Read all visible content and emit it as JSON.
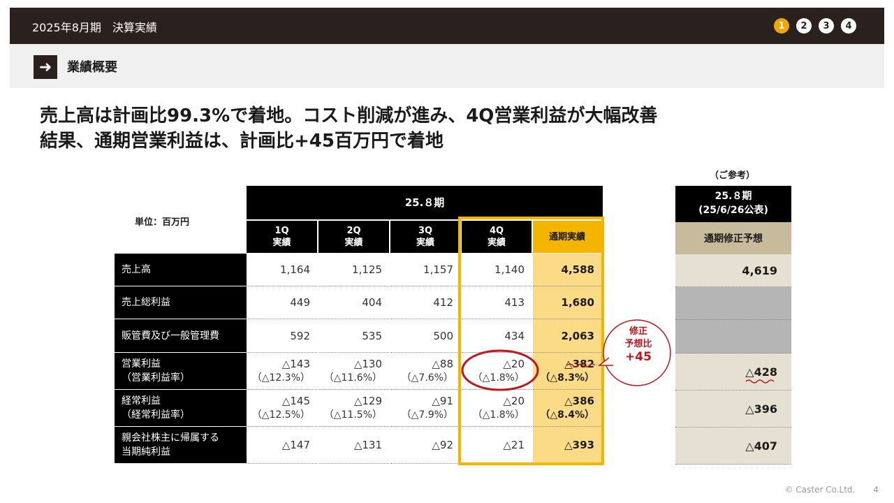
{
  "header": {
    "title": "2025年8月期　決算実績",
    "steps": [
      "1",
      "2",
      "3",
      "4"
    ],
    "active_step": "1"
  },
  "section": {
    "title": "業績概要"
  },
  "headline": {
    "line1": "売上高は計画比99.3%で着地。コスト削減が進み、4Q営業利益が大幅改善",
    "line2": "結果、通期営業利益は、計画比+45百万円で着地"
  },
  "table": {
    "unit": "単位：百万円",
    "period": "25.８期",
    "columns": [
      {
        "line1": "1Q",
        "line2": "実績"
      },
      {
        "line1": "2Q",
        "line2": "実績"
      },
      {
        "line1": "3Q",
        "line2": "実績"
      },
      {
        "line1": "4Q",
        "line2": "実績"
      },
      {
        "line1": "通期実績",
        "line2": ""
      }
    ],
    "rows": [
      {
        "label1": "売上高",
        "label2": "",
        "values": [
          [
            "1,164",
            ""
          ],
          [
            "1,125",
            ""
          ],
          [
            "1,157",
            ""
          ],
          [
            "1,140",
            ""
          ],
          [
            "4,588",
            ""
          ]
        ]
      },
      {
        "label1": "売上総利益",
        "label2": "",
        "values": [
          [
            "449",
            ""
          ],
          [
            "404",
            ""
          ],
          [
            "412",
            ""
          ],
          [
            "413",
            ""
          ],
          [
            "1,680",
            ""
          ]
        ]
      },
      {
        "label1": "販管費及び一般管理費",
        "label2": "",
        "values": [
          [
            "592",
            ""
          ],
          [
            "535",
            ""
          ],
          [
            "500",
            ""
          ],
          [
            "434",
            ""
          ],
          [
            "2,063",
            ""
          ]
        ]
      },
      {
        "label1": "営業利益",
        "label2": "（営業利益率）",
        "values": [
          [
            "△143",
            "（△12.3%）"
          ],
          [
            "△130",
            "（△11.6%）"
          ],
          [
            "△88",
            "（△7.6%）"
          ],
          [
            "△20",
            "（△1.8%）"
          ],
          [
            "△382",
            "（△8.3%）"
          ]
        ]
      },
      {
        "label1": "経常利益",
        "label2": "（経常利益率）",
        "values": [
          [
            "△145",
            "（△12.5%）"
          ],
          [
            "△129",
            "（△11.5%）"
          ],
          [
            "△91",
            "（△7.9%）"
          ],
          [
            "△20",
            "（△1.8%）"
          ],
          [
            "△386",
            "（△8.4%）"
          ]
        ]
      },
      {
        "label1": "親会社株主に帰属する",
        "label2": "当期純利益",
        "values": [
          [
            "△147",
            ""
          ],
          [
            "△131",
            ""
          ],
          [
            "△92",
            ""
          ],
          [
            "△21",
            ""
          ],
          [
            "△393",
            ""
          ]
        ]
      }
    ]
  },
  "reference": {
    "label": "（ご参考）",
    "period_line1": "25.８期",
    "period_line2": "(25/6/26公表)",
    "column": "通期修正予想",
    "values": [
      "4,619",
      "",
      "",
      "△428",
      "△396",
      "△407"
    ]
  },
  "note": {
    "line1": "修正",
    "line2": "予想比",
    "line3": "+45"
  },
  "footer": {
    "copyright": "© Caster Co.Ltd.",
    "page": "4"
  },
  "colors": {
    "dark": "#2a201d",
    "gold": "#f5b400",
    "gold_light": "#fbdb85",
    "accent_red": "#c0161b",
    "ref_header": "#c7bb9c",
    "ref_cell": "#e5e0d2"
  }
}
